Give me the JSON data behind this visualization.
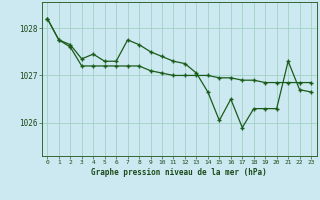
{
  "title": "Graphe pression niveau de la mer (hPa)",
  "background_color": "#cce8f0",
  "line_color": "#1a5c1a",
  "grid_color": "#99ccbb",
  "x_labels": [
    "0",
    "1",
    "2",
    "3",
    "4",
    "5",
    "6",
    "7",
    "8",
    "9",
    "10",
    "11",
    "12",
    "13",
    "14",
    "15",
    "16",
    "17",
    "18",
    "19",
    "20",
    "21",
    "22",
    "23"
  ],
  "ylim": [
    1025.3,
    1028.55
  ],
  "yticks": [
    1026,
    1027,
    1028
  ],
  "line1_x": [
    0,
    1,
    2,
    3,
    4,
    5,
    6,
    7,
    8,
    9,
    10,
    11,
    12,
    13,
    14,
    15,
    16,
    17,
    18,
    19,
    20,
    21,
    22,
    23
  ],
  "line1_y": [
    1028.2,
    1027.75,
    1027.65,
    1027.35,
    1027.45,
    1027.3,
    1027.3,
    1027.75,
    1027.65,
    1027.5,
    1027.4,
    1027.3,
    1027.25,
    1027.05,
    1026.65,
    1026.05,
    1026.5,
    1025.9,
    1026.3,
    1026.3,
    1026.3,
    1027.3,
    1026.7,
    1026.65
  ],
  "line2_x": [
    0,
    1,
    2,
    3,
    4,
    5,
    6,
    7,
    8,
    9,
    10,
    11,
    12,
    13,
    14,
    15,
    16,
    17,
    18,
    19,
    20,
    21,
    22,
    23
  ],
  "line2_y": [
    1028.2,
    1027.75,
    1027.6,
    1027.2,
    1027.2,
    1027.2,
    1027.2,
    1027.2,
    1027.2,
    1027.1,
    1027.05,
    1027.0,
    1027.0,
    1027.0,
    1027.0,
    1026.95,
    1026.95,
    1026.9,
    1026.9,
    1026.85,
    1026.85,
    1026.85,
    1026.85,
    1026.85
  ]
}
